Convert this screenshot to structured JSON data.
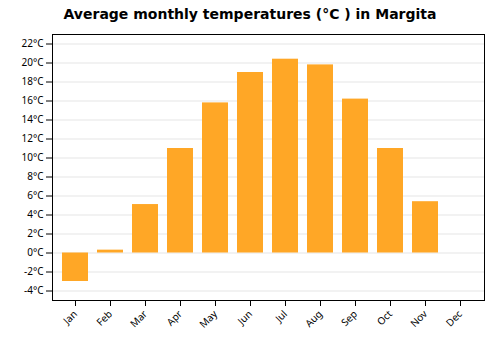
{
  "chart_data": {
    "type": "bar",
    "title": "Average monthly temperatures (°C ) in Margita",
    "categories": [
      "Jan",
      "Feb",
      "Mar",
      "Apr",
      "May",
      "Jun",
      "Jul",
      "Aug",
      "Sep",
      "Oct",
      "Nov",
      "Dec"
    ],
    "values": [
      -3.0,
      0.3,
      5.1,
      11.0,
      15.8,
      19.0,
      20.4,
      19.8,
      16.2,
      11.0,
      5.4,
      0.0
    ],
    "color": "#FFA726",
    "ylim": [
      -5,
      23
    ],
    "yticks": [
      {
        "value": -4,
        "label": "-4°C"
      },
      {
        "value": -2,
        "label": "-2°C"
      },
      {
        "value": 0,
        "label": "0°C"
      },
      {
        "value": 2,
        "label": "2°C"
      },
      {
        "value": 4,
        "label": "4°C"
      },
      {
        "value": 6,
        "label": "6°C"
      },
      {
        "value": 8,
        "label": "8°C"
      },
      {
        "value": 10,
        "label": "10°C"
      },
      {
        "value": 12,
        "label": "12°C"
      },
      {
        "value": 14,
        "label": "14°C"
      },
      {
        "value": 16,
        "label": "16°C"
      },
      {
        "value": 18,
        "label": "18°C"
      },
      {
        "value": 20,
        "label": "20°C"
      },
      {
        "value": 22,
        "label": "22°C"
      }
    ],
    "grid": true
  }
}
